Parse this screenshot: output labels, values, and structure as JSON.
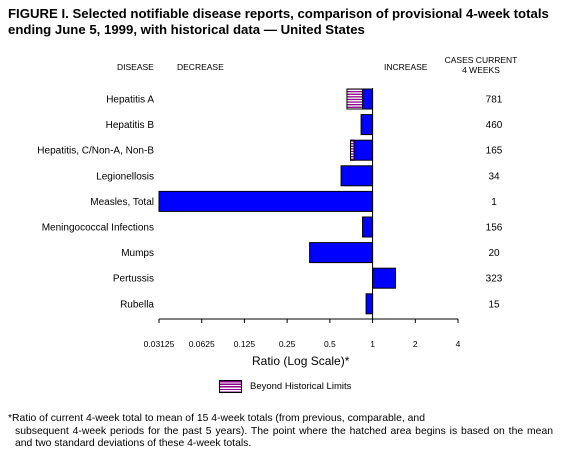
{
  "figure": {
    "title_line1": "FIGURE I. Selected notifiable disease reports, comparison of provisional 4-week totals",
    "title_line2": "ending June 5, 1999, with historical data — United States"
  },
  "headers": {
    "disease": "DISEASE",
    "decrease": "DECREASE",
    "increase": "INCREASE",
    "cases_line1": "CASES CURRENT",
    "cases_line2": "4 WEEKS"
  },
  "legend": {
    "label": "Beyond Historical Limits"
  },
  "footnote": {
    "line1": "*Ratio of current 4-week total to mean of 15 4-week totals (from previous, comparable, and",
    "line2": "subsequent 4-week periods for the past 5 years). The point where the hatched area begins is based on the mean and two standard deviations of these 4-week totals."
  },
  "chart_data": {
    "type": "bar",
    "orientation": "horizontal",
    "xscale": "log2",
    "xlabel": "Ratio (Log Scale)*",
    "xticks": [
      "0.03125",
      "0.0625",
      "0.125",
      "0.25",
      "0.5",
      "1",
      "2",
      "4"
    ],
    "xlim": [
      0.03125,
      4
    ],
    "baseline": 1,
    "categories": [
      "Hepatitis A",
      "Hepatitis B",
      "Hepatitis, C/Non-A, Non-B",
      "Legionellosis",
      "Measles, Total",
      "Meningococcal Infections",
      "Mumps",
      "Pertussis",
      "Rubella"
    ],
    "values": [
      0.66,
      0.83,
      0.7,
      0.6,
      0.03125,
      0.85,
      0.36,
      1.45,
      0.9
    ],
    "beyond_historical_limits_from": [
      0.85,
      null,
      0.74,
      null,
      null,
      null,
      null,
      null,
      null
    ],
    "cases": [
      "781",
      "460",
      "165",
      "34",
      "1",
      "156",
      "20",
      "323",
      "15"
    ],
    "colors": {
      "bar": "#0000ff",
      "hatch": "#8b008b",
      "outline": "#000000"
    }
  }
}
